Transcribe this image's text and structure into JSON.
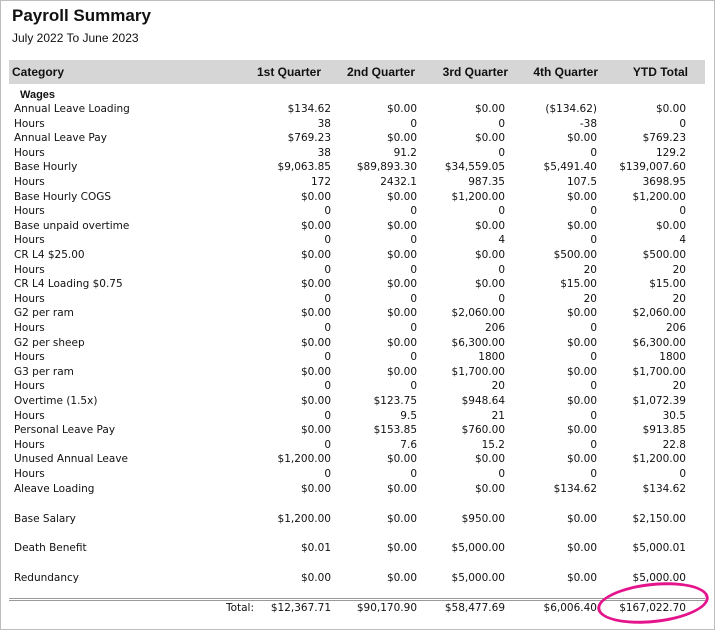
{
  "report": {
    "title": "Payroll Summary",
    "period": "July 2022 To June 2023"
  },
  "columns": [
    "Category",
    "1st Quarter",
    "2nd Quarter",
    "3rd Quarter",
    "4th Quarter",
    "YTD Total"
  ],
  "section_label": "Wages",
  "rows": [
    {
      "label": "Annual Leave Loading",
      "values": [
        "$134.62",
        "$0.00",
        "$0.00",
        "($134.62)",
        "$0.00"
      ]
    },
    {
      "label": "Hours",
      "values": [
        "38",
        "0",
        "0",
        "-38",
        "0"
      ]
    },
    {
      "label": "Annual Leave Pay",
      "values": [
        "$769.23",
        "$0.00",
        "$0.00",
        "$0.00",
        "$769.23"
      ]
    },
    {
      "label": "Hours",
      "values": [
        "38",
        "91.2",
        "0",
        "0",
        "129.2"
      ]
    },
    {
      "label": "Base Hourly",
      "values": [
        "$9,063.85",
        "$89,893.30",
        "$34,559.05",
        "$5,491.40",
        "$139,007.60"
      ]
    },
    {
      "label": "Hours",
      "values": [
        "172",
        "2432.1",
        "987.35",
        "107.5",
        "3698.95"
      ]
    },
    {
      "label": "Base Hourly COGS",
      "values": [
        "$0.00",
        "$0.00",
        "$1,200.00",
        "$0.00",
        "$1,200.00"
      ]
    },
    {
      "label": "Hours",
      "values": [
        "0",
        "0",
        "0",
        "0",
        "0"
      ]
    },
    {
      "label": "Base unpaid overtime",
      "values": [
        "$0.00",
        "$0.00",
        "$0.00",
        "$0.00",
        "$0.00"
      ]
    },
    {
      "label": "Hours",
      "values": [
        "0",
        "0",
        "4",
        "0",
        "4"
      ]
    },
    {
      "label": "CR L4 $25.00",
      "values": [
        "$0.00",
        "$0.00",
        "$0.00",
        "$500.00",
        "$500.00"
      ]
    },
    {
      "label": "Hours",
      "values": [
        "0",
        "0",
        "0",
        "20",
        "20"
      ]
    },
    {
      "label": "CR L4 Loading $0.75",
      "values": [
        "$0.00",
        "$0.00",
        "$0.00",
        "$15.00",
        "$15.00"
      ]
    },
    {
      "label": "Hours",
      "values": [
        "0",
        "0",
        "0",
        "20",
        "20"
      ]
    },
    {
      "label": "G2 per ram",
      "values": [
        "$0.00",
        "$0.00",
        "$2,060.00",
        "$0.00",
        "$2,060.00"
      ]
    },
    {
      "label": "Hours",
      "values": [
        "0",
        "0",
        "206",
        "0",
        "206"
      ]
    },
    {
      "label": "G2 per sheep",
      "values": [
        "$0.00",
        "$0.00",
        "$6,300.00",
        "$0.00",
        "$6,300.00"
      ]
    },
    {
      "label": "Hours",
      "values": [
        "0",
        "0",
        "1800",
        "0",
        "1800"
      ]
    },
    {
      "label": "G3 per ram",
      "values": [
        "$0.00",
        "$0.00",
        "$1,700.00",
        "$0.00",
        "$1,700.00"
      ]
    },
    {
      "label": "Hours",
      "values": [
        "0",
        "0",
        "20",
        "0",
        "20"
      ]
    },
    {
      "label": "Overtime (1.5x)",
      "values": [
        "$0.00",
        "$123.75",
        "$948.64",
        "$0.00",
        "$1,072.39"
      ]
    },
    {
      "label": "Hours",
      "values": [
        "0",
        "9.5",
        "21",
        "0",
        "30.5"
      ]
    },
    {
      "label": "Personal Leave Pay",
      "values": [
        "$0.00",
        "$153.85",
        "$760.00",
        "$0.00",
        "$913.85"
      ]
    },
    {
      "label": "Hours",
      "values": [
        "0",
        "7.6",
        "15.2",
        "0",
        "22.8"
      ]
    },
    {
      "label": "Unused Annual Leave",
      "values": [
        "$1,200.00",
        "$0.00",
        "$0.00",
        "$0.00",
        "$1,200.00"
      ]
    },
    {
      "label": "Hours",
      "values": [
        "0",
        "0",
        "0",
        "0",
        "0"
      ]
    },
    {
      "label": "Aleave Loading",
      "values": [
        "$0.00",
        "$0.00",
        "$0.00",
        "$134.62",
        "$134.62"
      ]
    }
  ],
  "extra_rows": [
    {
      "label": "Base Salary",
      "values": [
        "$1,200.00",
        "$0.00",
        "$950.00",
        "$0.00",
        "$2,150.00"
      ]
    },
    {
      "label": "Death Benefit",
      "values": [
        "$0.01",
        "$0.00",
        "$5,000.00",
        "$0.00",
        "$5,000.01"
      ]
    },
    {
      "label": "Redundancy",
      "values": [
        "$0.00",
        "$0.00",
        "$5,000.00",
        "$0.00",
        "$5,000.00"
      ]
    }
  ],
  "totals": {
    "label": "Total:",
    "values": [
      "$12,367.71",
      "$90,170.90",
      "$58,477.69",
      "$6,006.40",
      "$167,022.70"
    ]
  },
  "highlight_color": "#e4148c"
}
